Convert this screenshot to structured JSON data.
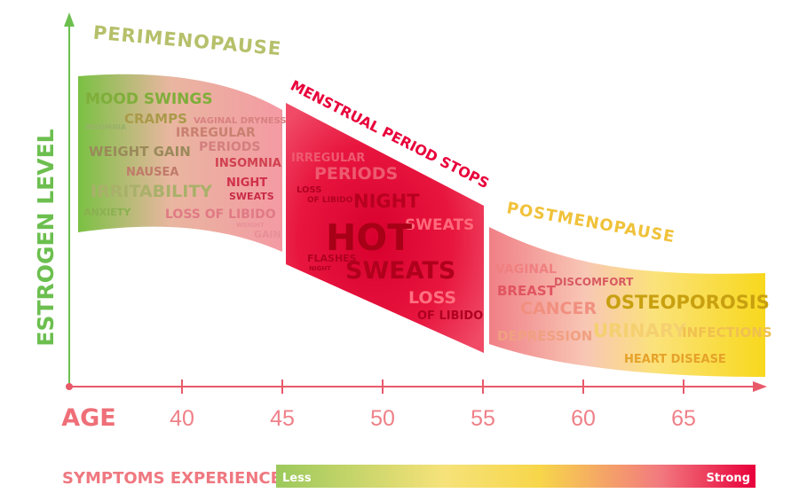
{
  "axes": {
    "y_label": "ESTROGEN LEVEL",
    "x_label": "AGE",
    "x_ticks": [
      "40",
      "45",
      "50",
      "55",
      "60",
      "65"
    ]
  },
  "phases": {
    "perimenopause": {
      "title": "PERIMENOPAUSE",
      "symptoms": [
        "MOOD SWINGS",
        "CRAMPS",
        "INSOMNIA",
        "VAGINAL DRYNESS",
        "IRREGULAR",
        "PERIODS",
        "WEIGHT GAIN",
        "INSOMNIA",
        "NAUSEA",
        "NIGHT",
        "SWEATS",
        "IRRITABILITY",
        "ANXIETY",
        "LOSS OF LIBIDO",
        "WEIGHT",
        "GAIN"
      ]
    },
    "menstrual_stop": {
      "title": "MENSTRUAL PERIOD STOPS",
      "symptoms": [
        "IRREGULAR",
        "PERIODS",
        "LOSS",
        "OF LIBIDO",
        "NIGHT",
        "SWEATS",
        "HOT",
        "FLASHES",
        "NIGHT",
        "SWEATS",
        "LOSS",
        "OF LIBIDO"
      ]
    },
    "postmenopause": {
      "title": "POSTMENOPAUSE",
      "symptoms": [
        "VAGINAL",
        "DISCOMFORT",
        "BREAST",
        "CANCER",
        "OSTEOPOROSIS",
        "DEPRESSION",
        "URINARY",
        "INFECTIONS",
        "HEART DISEASE"
      ]
    }
  },
  "legend": {
    "title": "SYMPTOMS EXPERIENCE",
    "low": "Less",
    "high": "Strong"
  },
  "colors": {
    "axis_y": "#6cbf4f",
    "axis_x": "#e85a6a",
    "green": "#7cc04f",
    "red": "#e8003a",
    "yellow": "#f6d21e",
    "pink": "#f3a0a6"
  }
}
